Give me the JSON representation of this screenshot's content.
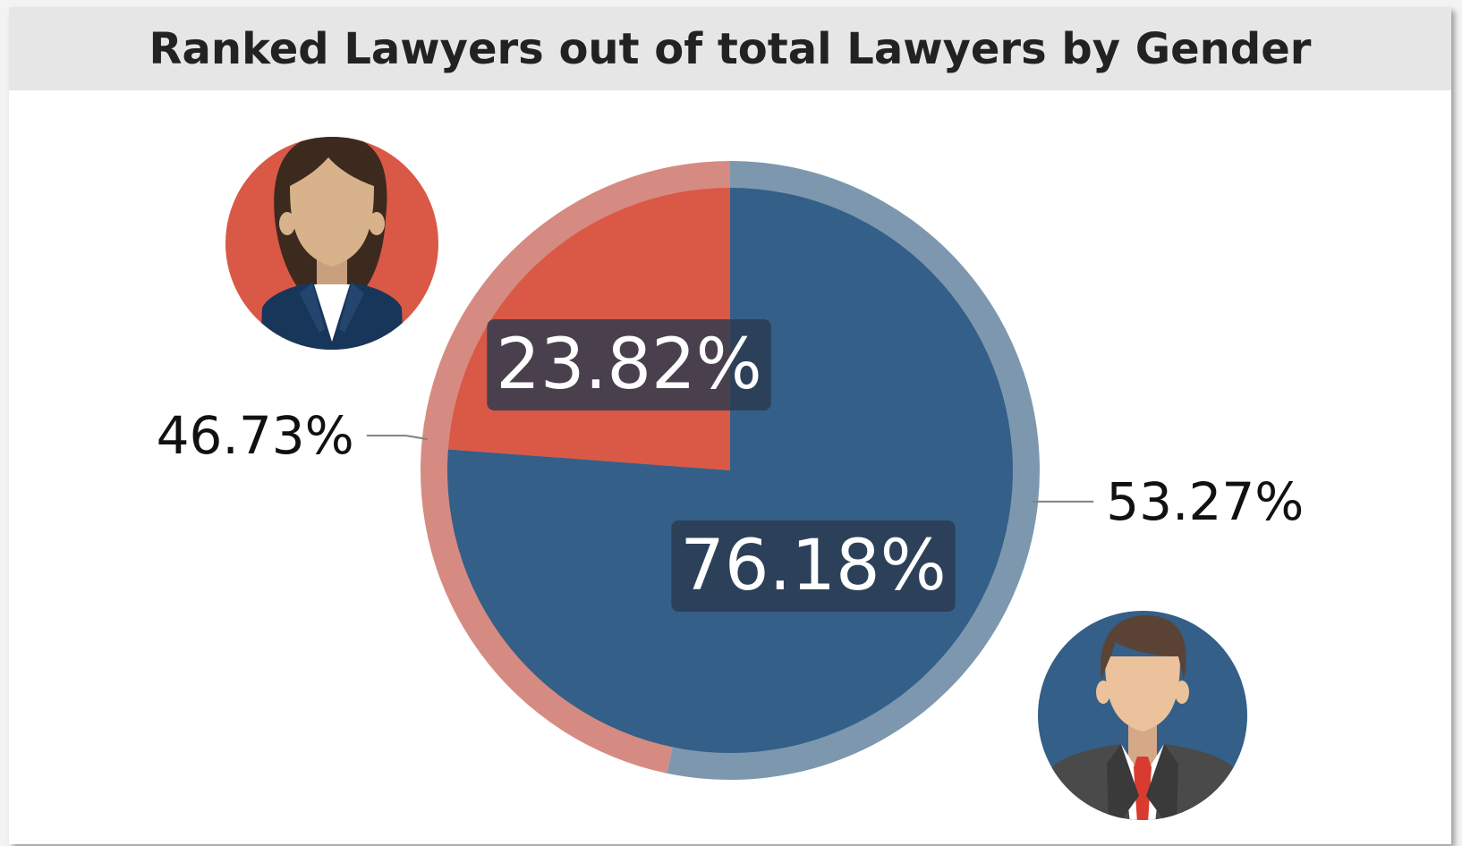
{
  "chart_data": {
    "type": "pie",
    "title": "Ranked Lawyers out of total Lawyers by Gender",
    "outer_ring": [
      {
        "value": 46.73,
        "label": "46.73%",
        "color": "#d68b82"
      },
      {
        "value": 53.27,
        "label": "53.27%",
        "color": "#7d98ae"
      }
    ],
    "inner_pie": [
      {
        "value": 23.82,
        "label": "23.82%",
        "color": "#d95946"
      },
      {
        "value": 76.18,
        "label": "76.18%",
        "color": "#345f88"
      }
    ],
    "legend": "none",
    "icons": [
      "woman-avatar-icon",
      "man-avatar-icon"
    ]
  },
  "colors": {
    "female_badge": "#d95946",
    "male_badge": "#345f88",
    "label_bg": "#2b3a4f",
    "leader_line": "#808080"
  }
}
